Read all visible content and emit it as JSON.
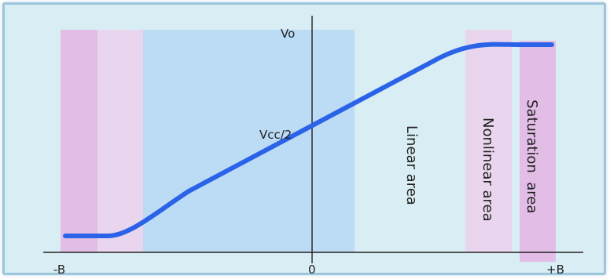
{
  "diagram": {
    "y_labels": {
      "top": "Vo",
      "mid": "Vcc/2"
    },
    "x_labels": {
      "left": "-B",
      "center": "0",
      "right": "+B"
    },
    "regions": {
      "linear": "Linear area",
      "nonlinear": "Nonlinear area",
      "saturation": "Saturation  area"
    },
    "colors": {
      "background": "#d9edf4",
      "frame_border": "#9cc6dc",
      "saturation_band": "#e2bde6",
      "nonlinear_band": "#e9d6ee",
      "linear_band": "#bcdbf5",
      "curve": "#2a63e8",
      "axis": "#222222"
    }
  }
}
